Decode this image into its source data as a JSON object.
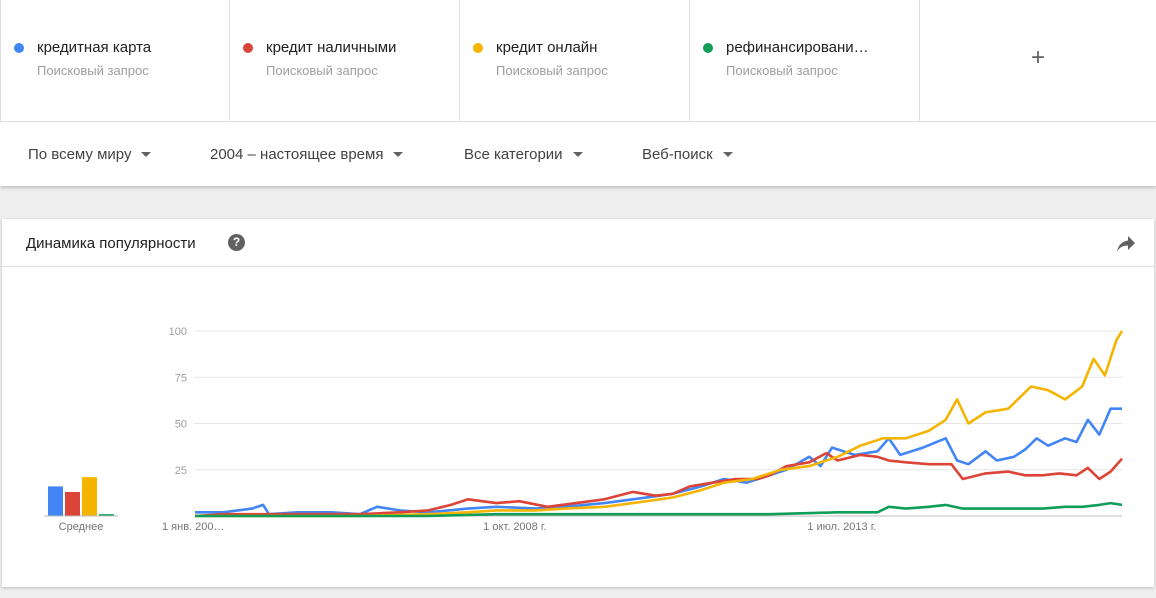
{
  "terms": [
    {
      "name": "кредитная карта",
      "sub": "Поисковый запрос",
      "color": "#4285f4"
    },
    {
      "name": "кредит наличными",
      "sub": "Поисковый запрос",
      "color": "#db4437"
    },
    {
      "name": "кредит онлайн",
      "sub": "Поисковый запрос",
      "color": "#f4b400"
    },
    {
      "name": "рефинансировани…",
      "sub": "Поисковый запрос",
      "color": "#0f9d58"
    }
  ],
  "add_term_icon": "plus-icon",
  "filters": {
    "region": "По всему миру",
    "period": "2004 – настоящее время",
    "category": "Все категории",
    "search_type": "Веб-поиск"
  },
  "card": {
    "title": "Динамика популярности",
    "help_icon": "help-icon",
    "share_icon": "share-icon"
  },
  "chart_data": {
    "type": "line",
    "y_ticks": [
      100,
      75,
      50,
      25
    ],
    "ylim": [
      0,
      100
    ],
    "xlim": [
      "2004-01",
      "2017-08"
    ],
    "x_tick_labels": [
      {
        "label": "1 янв. 200…",
        "at": "2004-01"
      },
      {
        "label": "1 окт. 2008 г.",
        "at": "2008-10"
      },
      {
        "label": "1 июл. 2013 г.",
        "at": "2013-07"
      }
    ],
    "grid": true,
    "average": {
      "label": "Среднее",
      "values": [
        16,
        13,
        21,
        1
      ]
    },
    "series": [
      {
        "name": "кредитная карта",
        "color": "#4285f4",
        "points": [
          [
            "2004-01",
            2
          ],
          [
            "2004-06",
            2
          ],
          [
            "2004-11",
            4
          ],
          [
            "2005-01",
            6
          ],
          [
            "2005-02",
            1
          ],
          [
            "2005-07",
            2
          ],
          [
            "2006-01",
            2
          ],
          [
            "2006-06",
            1
          ],
          [
            "2006-09",
            5
          ],
          [
            "2007-01",
            3
          ],
          [
            "2007-06",
            2
          ],
          [
            "2008-01",
            4
          ],
          [
            "2008-06",
            5
          ],
          [
            "2009-01",
            4
          ],
          [
            "2009-06",
            5
          ],
          [
            "2010-01",
            7
          ],
          [
            "2010-06",
            9
          ],
          [
            "2011-01",
            12
          ],
          [
            "2011-06",
            16
          ],
          [
            "2011-10",
            20
          ],
          [
            "2012-02",
            18
          ],
          [
            "2012-06",
            22
          ],
          [
            "2012-09",
            25
          ],
          [
            "2013-01",
            32
          ],
          [
            "2013-03",
            27
          ],
          [
            "2013-05",
            37
          ],
          [
            "2013-09",
            33
          ],
          [
            "2014-01",
            35
          ],
          [
            "2014-03",
            42
          ],
          [
            "2014-05",
            33
          ],
          [
            "2014-09",
            37
          ],
          [
            "2015-01",
            42
          ],
          [
            "2015-03",
            30
          ],
          [
            "2015-05",
            28
          ],
          [
            "2015-08",
            35
          ],
          [
            "2015-10",
            30
          ],
          [
            "2016-01",
            32
          ],
          [
            "2016-03",
            36
          ],
          [
            "2016-05",
            42
          ],
          [
            "2016-07",
            38
          ],
          [
            "2016-10",
            42
          ],
          [
            "2016-12",
            40
          ],
          [
            "2017-02",
            52
          ],
          [
            "2017-04",
            44
          ],
          [
            "2017-06",
            58
          ],
          [
            "2017-08",
            58
          ]
        ]
      },
      {
        "name": "кредит наличными",
        "color": "#db4437",
        "points": [
          [
            "2004-01",
            0
          ],
          [
            "2004-06",
            1
          ],
          [
            "2005-01",
            1
          ],
          [
            "2005-06",
            1
          ],
          [
            "2006-01",
            1
          ],
          [
            "2006-06",
            1
          ],
          [
            "2007-01",
            2
          ],
          [
            "2007-06",
            3
          ],
          [
            "2007-10",
            6
          ],
          [
            "2008-01",
            9
          ],
          [
            "2008-06",
            7
          ],
          [
            "2008-10",
            8
          ],
          [
            "2009-03",
            5
          ],
          [
            "2009-08",
            7
          ],
          [
            "2010-01",
            9
          ],
          [
            "2010-06",
            13
          ],
          [
            "2010-10",
            11
          ],
          [
            "2011-01",
            12
          ],
          [
            "2011-04",
            16
          ],
          [
            "2011-08",
            18
          ],
          [
            "2011-12",
            20
          ],
          [
            "2012-04",
            20
          ],
          [
            "2012-06",
            22
          ],
          [
            "2012-09",
            27
          ],
          [
            "2013-01",
            29
          ],
          [
            "2013-04",
            34
          ],
          [
            "2013-06",
            30
          ],
          [
            "2013-10",
            33
          ],
          [
            "2014-01",
            32
          ],
          [
            "2014-03",
            30
          ],
          [
            "2014-06",
            29
          ],
          [
            "2014-10",
            28
          ],
          [
            "2015-02",
            28
          ],
          [
            "2015-04",
            20
          ],
          [
            "2015-08",
            23
          ],
          [
            "2015-12",
            24
          ],
          [
            "2016-03",
            22
          ],
          [
            "2016-06",
            22
          ],
          [
            "2016-09",
            23
          ],
          [
            "2016-12",
            22
          ],
          [
            "2017-02",
            26
          ],
          [
            "2017-04",
            20
          ],
          [
            "2017-06",
            24
          ],
          [
            "2017-08",
            31
          ]
        ]
      },
      {
        "name": "кредит онлайн",
        "color": "#f4b400",
        "points": [
          [
            "2004-01",
            0
          ],
          [
            "2005-06",
            0
          ],
          [
            "2006-06",
            0
          ],
          [
            "2007-06",
            1
          ],
          [
            "2008-01",
            2
          ],
          [
            "2008-06",
            3
          ],
          [
            "2009-01",
            3
          ],
          [
            "2009-06",
            4
          ],
          [
            "2010-01",
            5
          ],
          [
            "2010-06",
            7
          ],
          [
            "2011-01",
            10
          ],
          [
            "2011-06",
            14
          ],
          [
            "2011-10",
            18
          ],
          [
            "2012-03",
            20
          ],
          [
            "2012-08",
            25
          ],
          [
            "2013-01",
            27
          ],
          [
            "2013-06",
            32
          ],
          [
            "2013-10",
            38
          ],
          [
            "2014-02",
            42
          ],
          [
            "2014-06",
            42
          ],
          [
            "2014-10",
            46
          ],
          [
            "2015-01",
            52
          ],
          [
            "2015-03",
            63
          ],
          [
            "2015-05",
            50
          ],
          [
            "2015-08",
            56
          ],
          [
            "2015-12",
            58
          ],
          [
            "2016-04",
            70
          ],
          [
            "2016-07",
            68
          ],
          [
            "2016-10",
            63
          ],
          [
            "2017-01",
            70
          ],
          [
            "2017-03",
            85
          ],
          [
            "2017-05",
            76
          ],
          [
            "2017-07",
            95
          ],
          [
            "2017-08",
            100
          ]
        ]
      },
      {
        "name": "рефинансировани…",
        "color": "#0f9d58",
        "points": [
          [
            "2004-01",
            0
          ],
          [
            "2005-06",
            0
          ],
          [
            "2007-06",
            0
          ],
          [
            "2008-06",
            1
          ],
          [
            "2009-06",
            1
          ],
          [
            "2010-06",
            1
          ],
          [
            "2011-06",
            1
          ],
          [
            "2012-06",
            1
          ],
          [
            "2013-06",
            2
          ],
          [
            "2014-01",
            2
          ],
          [
            "2014-03",
            5
          ],
          [
            "2014-06",
            4
          ],
          [
            "2014-10",
            5
          ],
          [
            "2015-01",
            6
          ],
          [
            "2015-04",
            4
          ],
          [
            "2015-08",
            4
          ],
          [
            "2016-01",
            4
          ],
          [
            "2016-06",
            4
          ],
          [
            "2016-10",
            5
          ],
          [
            "2017-01",
            5
          ],
          [
            "2017-04",
            6
          ],
          [
            "2017-06",
            7
          ],
          [
            "2017-08",
            6
          ]
        ]
      }
    ]
  }
}
